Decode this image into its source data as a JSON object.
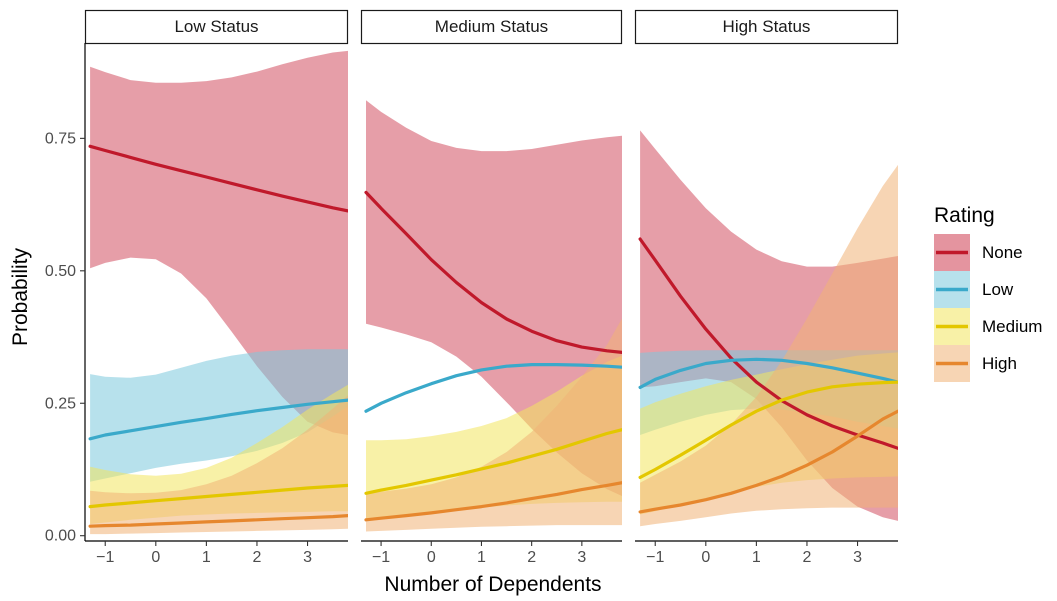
{
  "chart_data": {
    "type": "line",
    "xlabel": "Number of Dependents",
    "ylabel": "Probability",
    "xlim": [
      -1.4,
      3.8
    ],
    "ylim": [
      -0.01,
      0.93
    ],
    "xticks": [
      -1,
      0,
      1,
      2,
      3
    ],
    "xtick_labels": [
      "−1",
      "0",
      "1",
      "2",
      "3"
    ],
    "yticks": [
      0.0,
      0.25,
      0.5,
      0.75
    ],
    "ytick_labels": [
      "0.00",
      "0.25",
      "0.50",
      "0.75"
    ],
    "grid": false,
    "legend": {
      "title": "Rating",
      "position": "right",
      "entries": [
        {
          "label": "None",
          "color": "#C0192B"
        },
        {
          "label": "Low",
          "color": "#3AA9CA"
        },
        {
          "label": "Medium",
          "color": "#E3C700"
        },
        {
          "label": "High",
          "color": "#E6872E"
        }
      ]
    },
    "band_colors": {
      "None": "#CD3D51",
      "Low": "#7CC8DC",
      "Medium": "#F2E65E",
      "High": "#F0B276"
    },
    "x_grid": [
      -1.3,
      -1.0,
      -0.5,
      0.0,
      0.5,
      1.0,
      1.5,
      2.0,
      2.5,
      3.0,
      3.5,
      3.8
    ],
    "panels": [
      {
        "strip": "Low Status",
        "series": [
          {
            "name": "None",
            "y": [
              0.735,
              0.727,
              0.714,
              0.701,
              0.689,
              0.677,
              0.665,
              0.653,
              0.641,
              0.63,
              0.619,
              0.613
            ],
            "lower": [
              0.505,
              0.515,
              0.525,
              0.522,
              0.495,
              0.448,
              0.385,
              0.32,
              0.262,
              0.215,
              0.195,
              0.19
            ],
            "upper": [
              0.885,
              0.875,
              0.86,
              0.855,
              0.855,
              0.858,
              0.865,
              0.876,
              0.89,
              0.902,
              0.912,
              0.915
            ]
          },
          {
            "name": "Low",
            "y": [
              0.183,
              0.19,
              0.198,
              0.206,
              0.214,
              0.221,
              0.229,
              0.236,
              0.242,
              0.248,
              0.253,
              0.256
            ],
            "lower": [
              0.102,
              0.108,
              0.118,
              0.128,
              0.136,
              0.142,
              0.15,
              0.16,
              0.175,
              0.195,
              0.225,
              0.245
            ],
            "upper": [
              0.305,
              0.3,
              0.298,
              0.304,
              0.317,
              0.33,
              0.34,
              0.347,
              0.35,
              0.352,
              0.352,
              0.352
            ]
          },
          {
            "name": "Medium",
            "y": [
              0.055,
              0.058,
              0.062,
              0.066,
              0.07,
              0.074,
              0.078,
              0.082,
              0.086,
              0.09,
              0.093,
              0.095
            ],
            "lower": [
              0.022,
              0.025,
              0.03,
              0.034,
              0.038,
              0.04,
              0.042,
              0.043,
              0.044,
              0.045,
              0.046,
              0.046
            ],
            "upper": [
              0.13,
              0.124,
              0.116,
              0.113,
              0.117,
              0.128,
              0.147,
              0.175,
              0.205,
              0.238,
              0.268,
              0.285
            ]
          },
          {
            "name": "High",
            "y": [
              0.018,
              0.019,
              0.02,
              0.022,
              0.024,
              0.026,
              0.028,
              0.03,
              0.032,
              0.034,
              0.036,
              0.038
            ],
            "lower": [
              0.003,
              0.003,
              0.004,
              0.005,
              0.006,
              0.007,
              0.008,
              0.009,
              0.01,
              0.011,
              0.012,
              0.013
            ],
            "upper": [
              0.085,
              0.082,
              0.08,
              0.081,
              0.086,
              0.097,
              0.113,
              0.137,
              0.165,
              0.2,
              0.24,
              0.265
            ]
          }
        ]
      },
      {
        "strip": "Medium Status",
        "series": [
          {
            "name": "None",
            "y": [
              0.648,
              0.618,
              0.57,
              0.521,
              0.478,
              0.44,
              0.409,
              0.386,
              0.368,
              0.356,
              0.349,
              0.346
            ],
            "lower": [
              0.4,
              0.393,
              0.38,
              0.365,
              0.338,
              0.3,
              0.252,
              0.202,
              0.157,
              0.118,
              0.088,
              0.075
            ],
            "upper": [
              0.822,
              0.8,
              0.77,
              0.745,
              0.732,
              0.726,
              0.726,
              0.73,
              0.738,
              0.746,
              0.752,
              0.755
            ]
          },
          {
            "name": "Low",
            "y": [
              0.235,
              0.25,
              0.27,
              0.287,
              0.302,
              0.313,
              0.32,
              0.323,
              0.323,
              0.322,
              0.32,
              0.318
            ]
          },
          {
            "name": "Medium",
            "y": [
              0.08,
              0.086,
              0.095,
              0.105,
              0.115,
              0.126,
              0.137,
              0.15,
              0.163,
              0.178,
              0.193,
              0.2
            ],
            "lower": [
              0.03,
              0.033,
              0.038,
              0.043,
              0.048,
              0.053,
              0.057,
              0.06,
              0.062,
              0.063,
              0.064,
              0.064
            ],
            "upper": [
              0.18,
              0.18,
              0.182,
              0.188,
              0.196,
              0.207,
              0.222,
              0.245,
              0.272,
              0.302,
              0.328,
              0.34
            ]
          },
          {
            "name": "High",
            "y": [
              0.03,
              0.033,
              0.038,
              0.043,
              0.049,
              0.055,
              0.062,
              0.07,
              0.078,
              0.087,
              0.095,
              0.1
            ],
            "lower": [
              0.008,
              0.009,
              0.011,
              0.013,
              0.015,
              0.017,
              0.018,
              0.019,
              0.02,
              0.02,
              0.02,
              0.02
            ],
            "upper": [
              0.08,
              0.083,
              0.089,
              0.097,
              0.11,
              0.13,
              0.158,
              0.196,
              0.245,
              0.3,
              0.36,
              0.41
            ]
          }
        ]
      },
      {
        "strip": "High Status",
        "series": [
          {
            "name": "None",
            "y": [
              0.56,
              0.52,
              0.452,
              0.39,
              0.335,
              0.29,
              0.255,
              0.228,
              0.207,
              0.19,
              0.175,
              0.165
            ],
            "lower": [
              0.28,
              0.282,
              0.29,
              0.297,
              0.29,
              0.258,
              0.205,
              0.142,
              0.09,
              0.055,
              0.035,
              0.028
            ],
            "upper": [
              0.765,
              0.73,
              0.672,
              0.618,
              0.574,
              0.54,
              0.518,
              0.508,
              0.508,
              0.515,
              0.523,
              0.528
            ]
          },
          {
            "name": "Low",
            "y": [
              0.28,
              0.295,
              0.312,
              0.325,
              0.331,
              0.333,
              0.331,
              0.325,
              0.317,
              0.307,
              0.297,
              0.29
            ],
            "lower": [
              0.19,
              0.2,
              0.215,
              0.228,
              0.237,
              0.24,
              0.238,
              0.232,
              0.225,
              0.215,
              0.207,
              0.202
            ],
            "upper": [
              0.345,
              0.347,
              0.349,
              0.35,
              0.35,
              0.35,
              0.35,
              0.35,
              0.35,
              0.35,
              0.35,
              0.35
            ]
          },
          {
            "name": "Medium",
            "y": [
              0.11,
              0.125,
              0.152,
              0.18,
              0.209,
              0.235,
              0.256,
              0.271,
              0.281,
              0.286,
              0.289,
              0.29
            ],
            "lower": [
              0.04,
              0.046,
              0.058,
              0.07,
              0.082,
              0.092,
              0.1,
              0.105,
              0.108,
              0.11,
              0.111,
              0.112
            ],
            "upper": [
              0.24,
              0.252,
              0.268,
              0.282,
              0.294,
              0.304,
              0.314,
              0.324,
              0.332,
              0.34,
              0.344,
              0.346
            ]
          },
          {
            "name": "High",
            "y": [
              0.045,
              0.05,
              0.058,
              0.068,
              0.08,
              0.095,
              0.112,
              0.133,
              0.158,
              0.188,
              0.22,
              0.235
            ],
            "lower": [
              0.018,
              0.022,
              0.028,
              0.035,
              0.042,
              0.047,
              0.05,
              0.052,
              0.053,
              0.053,
              0.053,
              0.053
            ],
            "upper": [
              0.1,
              0.115,
              0.14,
              0.17,
              0.21,
              0.262,
              0.33,
              0.41,
              0.495,
              0.58,
              0.66,
              0.7
            ]
          }
        ]
      }
    ]
  }
}
